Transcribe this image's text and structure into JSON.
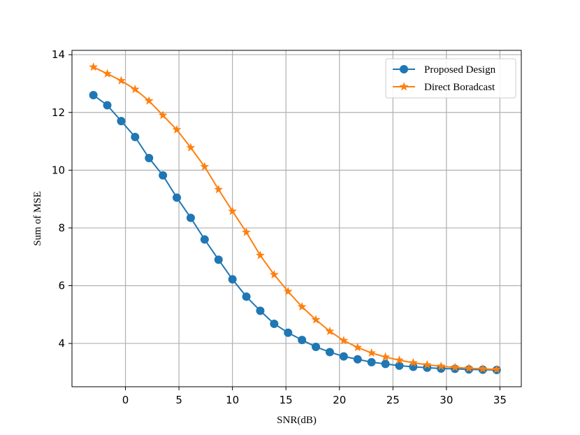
{
  "chart_data": {
    "type": "line",
    "title": "",
    "xlabel": "SNR(dB)",
    "ylabel": "Sum of MSE",
    "xlim": [
      -5,
      37
    ],
    "ylim": [
      2.5,
      14.15
    ],
    "xticks": [
      0,
      5,
      10,
      15,
      20,
      25,
      30,
      35
    ],
    "yticks": [
      4,
      6,
      8,
      10,
      12,
      14
    ],
    "grid": true,
    "legend_position": "top-right",
    "x": [
      -3,
      -1.7,
      -0.4,
      0.9,
      2.2,
      3.5,
      4.8,
      6.1,
      7.4,
      8.7,
      10,
      11.3,
      12.6,
      13.9,
      15.2,
      16.5,
      17.8,
      19.1,
      20.4,
      21.7,
      23,
      24.3,
      25.6,
      26.9,
      28.2,
      29.5,
      30.8,
      32.1,
      33.4,
      34.7
    ],
    "series": [
      {
        "name": "Proposed Design",
        "color": "#1f77b4",
        "marker": "circle",
        "values": [
          12.6,
          12.25,
          11.7,
          11.15,
          10.42,
          9.82,
          9.05,
          8.35,
          7.6,
          6.9,
          6.22,
          5.62,
          5.13,
          4.68,
          4.37,
          4.12,
          3.88,
          3.7,
          3.55,
          3.45,
          3.35,
          3.29,
          3.23,
          3.19,
          3.16,
          3.13,
          3.12,
          3.1,
          3.09,
          3.08
        ]
      },
      {
        "name": "Direct Boradcast",
        "color": "#ff7f0e",
        "marker": "star",
        "values": [
          13.57,
          13.34,
          13.1,
          12.8,
          12.4,
          11.9,
          11.4,
          10.78,
          10.12,
          9.33,
          8.58,
          7.85,
          7.05,
          6.38,
          5.8,
          5.27,
          4.82,
          4.42,
          4.1,
          3.86,
          3.67,
          3.53,
          3.42,
          3.33,
          3.26,
          3.21,
          3.17,
          3.14,
          3.12,
          3.1
        ]
      }
    ]
  }
}
